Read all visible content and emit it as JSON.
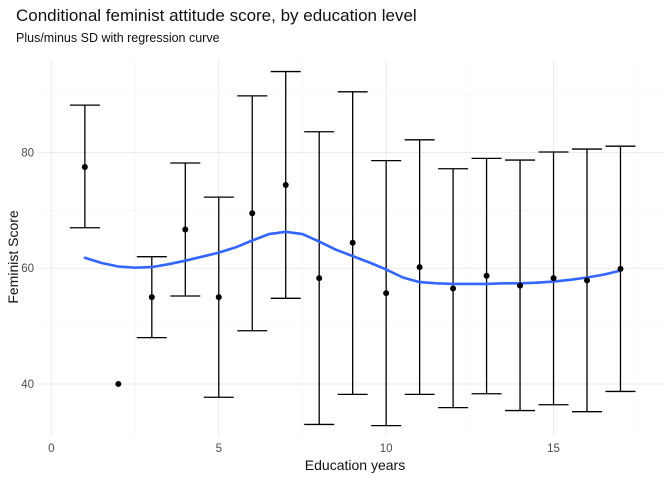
{
  "chart_data": {
    "type": "scatter",
    "title": "Conditional feminist attitude score, by education level",
    "subtitle": "Plus/minus SD with regression curve",
    "xlabel": "Education years",
    "ylabel": "Feminist Score",
    "xlim": [
      -0.4,
      18.3
    ],
    "ylim": [
      31,
      96
    ],
    "x_ticks": [
      0,
      5,
      10,
      15
    ],
    "y_ticks": [
      40,
      60,
      80
    ],
    "grid": true,
    "points": [
      {
        "x": 1,
        "y": 77.5,
        "ymin": 67.0,
        "ymax": 88.2
      },
      {
        "x": 2,
        "y": 40.0,
        "ymin": null,
        "ymax": null
      },
      {
        "x": 3,
        "y": 55.0,
        "ymin": 48.0,
        "ymax": 62.0
      },
      {
        "x": 4,
        "y": 66.7,
        "ymin": 55.2,
        "ymax": 78.2
      },
      {
        "x": 5,
        "y": 55.0,
        "ymin": 37.7,
        "ymax": 72.3
      },
      {
        "x": 6,
        "y": 69.5,
        "ymin": 49.2,
        "ymax": 89.8
      },
      {
        "x": 7,
        "y": 74.4,
        "ymin": 54.8,
        "ymax": 94.0
      },
      {
        "x": 8,
        "y": 58.3,
        "ymin": 33.0,
        "ymax": 83.6
      },
      {
        "x": 9,
        "y": 64.4,
        "ymin": 38.2,
        "ymax": 90.5
      },
      {
        "x": 10,
        "y": 55.7,
        "ymin": 32.8,
        "ymax": 78.6
      },
      {
        "x": 11,
        "y": 60.2,
        "ymin": 38.2,
        "ymax": 82.2
      },
      {
        "x": 12,
        "y": 56.5,
        "ymin": 35.9,
        "ymax": 77.2
      },
      {
        "x": 13,
        "y": 58.7,
        "ymin": 38.3,
        "ymax": 79.0
      },
      {
        "x": 14,
        "y": 57.0,
        "ymin": 35.4,
        "ymax": 78.7
      },
      {
        "x": 15,
        "y": 58.3,
        "ymin": 36.4,
        "ymax": 80.1
      },
      {
        "x": 16,
        "y": 57.9,
        "ymin": 35.2,
        "ymax": 80.6
      },
      {
        "x": 17,
        "y": 59.9,
        "ymin": 38.7,
        "ymax": 81.1
      }
    ],
    "regression_curve": {
      "color": "#3366FF",
      "points": [
        [
          1,
          61.8
        ],
        [
          1.5,
          60.9
        ],
        [
          2,
          60.3
        ],
        [
          2.5,
          60.1
        ],
        [
          3,
          60.2
        ],
        [
          3.5,
          60.7
        ],
        [
          4,
          61.3
        ],
        [
          4.5,
          62.0
        ],
        [
          5,
          62.7
        ],
        [
          5.5,
          63.6
        ],
        [
          6,
          64.8
        ],
        [
          6.5,
          65.9
        ],
        [
          7,
          66.3
        ],
        [
          7.5,
          65.9
        ],
        [
          8,
          64.6
        ],
        [
          8.5,
          63.2
        ],
        [
          9,
          62.1
        ],
        [
          9.5,
          61.0
        ],
        [
          10,
          59.8
        ],
        [
          10.5,
          58.4
        ],
        [
          11,
          57.6
        ],
        [
          11.5,
          57.4
        ],
        [
          12,
          57.3
        ],
        [
          12.5,
          57.3
        ],
        [
          13,
          57.3
        ],
        [
          13.5,
          57.4
        ],
        [
          14,
          57.4
        ],
        [
          14.5,
          57.5
        ],
        [
          15,
          57.7
        ],
        [
          15.5,
          58.0
        ],
        [
          16,
          58.4
        ],
        [
          16.5,
          58.9
        ],
        [
          17,
          59.6
        ]
      ]
    },
    "colors": {
      "points": "#000000",
      "errorbars": "#000000"
    }
  }
}
